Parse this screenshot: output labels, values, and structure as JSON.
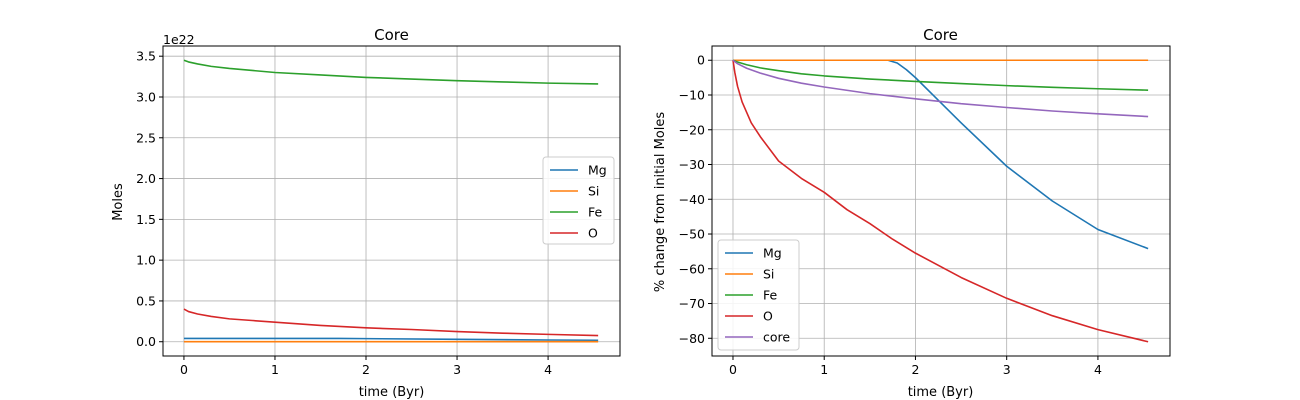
{
  "chart_data": [
    {
      "type": "line",
      "title": "Core",
      "xlabel": "time (Byr)",
      "ylabel": "Moles",
      "offset_label": "1e22",
      "xlim": [
        -0.23,
        4.79
      ],
      "ylim": [
        -0.175,
        3.625
      ],
      "xticks": [
        0,
        1,
        2,
        3,
        4
      ],
      "yticks": [
        0.0,
        0.5,
        1.0,
        1.5,
        2.0,
        2.5,
        3.0,
        3.5
      ],
      "ytick_labels": [
        "0.0",
        "0.5",
        "1.0",
        "1.5",
        "2.0",
        "2.5",
        "3.0",
        "3.5"
      ],
      "grid": true,
      "legend_position": "center right",
      "series": [
        {
          "name": "Mg",
          "color": "#1f77b4",
          "x": [
            0,
            1,
            1.7,
            2,
            3,
            4,
            4.55
          ],
          "values": [
            0.04,
            0.04,
            0.04,
            0.038,
            0.029,
            0.021,
            0.018
          ]
        },
        {
          "name": "Si",
          "color": "#ff7f0e",
          "x": [
            0,
            1,
            2,
            3,
            4,
            4.55
          ],
          "values": [
            0.0,
            0.0,
            0.0,
            0.0,
            0.0,
            0.0
          ]
        },
        {
          "name": "Fe",
          "color": "#2ca02c",
          "x": [
            0,
            0.05,
            0.15,
            0.3,
            0.5,
            0.75,
            1,
            1.5,
            2,
            2.5,
            3,
            3.5,
            4,
            4.55
          ],
          "values": [
            3.45,
            3.43,
            3.405,
            3.375,
            3.35,
            3.325,
            3.3,
            3.27,
            3.24,
            3.22,
            3.2,
            3.185,
            3.17,
            3.16
          ]
        },
        {
          "name": "O",
          "color": "#d62728",
          "x": [
            0,
            0.05,
            0.15,
            0.3,
            0.5,
            0.75,
            1,
            1.5,
            2,
            2.5,
            3,
            3.5,
            4,
            4.55
          ],
          "values": [
            0.4,
            0.37,
            0.34,
            0.31,
            0.28,
            0.26,
            0.24,
            0.2,
            0.17,
            0.15,
            0.125,
            0.105,
            0.09,
            0.075
          ]
        }
      ]
    },
    {
      "type": "line",
      "title": "Core",
      "xlabel": "time (Byr)",
      "ylabel": "% change from initial Moles",
      "xlim": [
        -0.23,
        4.79
      ],
      "ylim": [
        -85.1,
        4.1
      ],
      "xticks": [
        0,
        1,
        2,
        3,
        4
      ],
      "yticks": [
        0,
        -10,
        -20,
        -30,
        -40,
        -50,
        -60,
        -70,
        -80
      ],
      "ytick_labels": [
        "0",
        "−10",
        "−20",
        "−30",
        "−40",
        "−50",
        "−60",
        "−70",
        "−80"
      ],
      "grid": true,
      "legend_position": "lower left",
      "series": [
        {
          "name": "Mg",
          "color": "#1f77b4",
          "x": [
            0,
            1.7,
            1.8,
            1.9,
            2.0,
            2.2,
            2.5,
            3.0,
            3.5,
            4.0,
            4.55
          ],
          "values": [
            0,
            0,
            -0.8,
            -2.7,
            -5.0,
            -10.2,
            -18,
            -30.5,
            -40.5,
            -48.7,
            -54.2
          ]
        },
        {
          "name": "Si",
          "color": "#ff7f0e",
          "x": [
            0,
            1,
            2,
            3,
            4,
            4.55
          ],
          "values": [
            0,
            0,
            0,
            0,
            0,
            0
          ]
        },
        {
          "name": "Fe",
          "color": "#2ca02c",
          "x": [
            0,
            0.05,
            0.15,
            0.3,
            0.5,
            0.75,
            1,
            1.5,
            2,
            2.5,
            3,
            3.5,
            4,
            4.55
          ],
          "values": [
            0,
            -0.5,
            -1.3,
            -2.2,
            -3.0,
            -3.9,
            -4.5,
            -5.4,
            -6.1,
            -6.7,
            -7.3,
            -7.8,
            -8.2,
            -8.6
          ]
        },
        {
          "name": "O",
          "color": "#d62728",
          "x": [
            0,
            0.02,
            0.05,
            0.1,
            0.2,
            0.3,
            0.5,
            0.75,
            1,
            1.25,
            1.5,
            1.75,
            2,
            2.5,
            3,
            3.5,
            4,
            4.55
          ],
          "values": [
            0,
            -3.5,
            -7.5,
            -12,
            -18,
            -22,
            -29,
            -34,
            -38,
            -43,
            -47,
            -51.5,
            -55.5,
            -62.5,
            -68.5,
            -73.5,
            -77.5,
            -81.0
          ]
        },
        {
          "name": "core",
          "color": "#9467bd",
          "x": [
            0,
            0.05,
            0.15,
            0.3,
            0.5,
            0.75,
            1,
            1.5,
            2,
            2.5,
            3,
            3.5,
            4,
            4.55
          ],
          "values": [
            0,
            -1.0,
            -2.3,
            -3.7,
            -5.2,
            -6.6,
            -7.7,
            -9.6,
            -11.1,
            -12.5,
            -13.6,
            -14.6,
            -15.4,
            -16.2
          ]
        }
      ]
    }
  ]
}
